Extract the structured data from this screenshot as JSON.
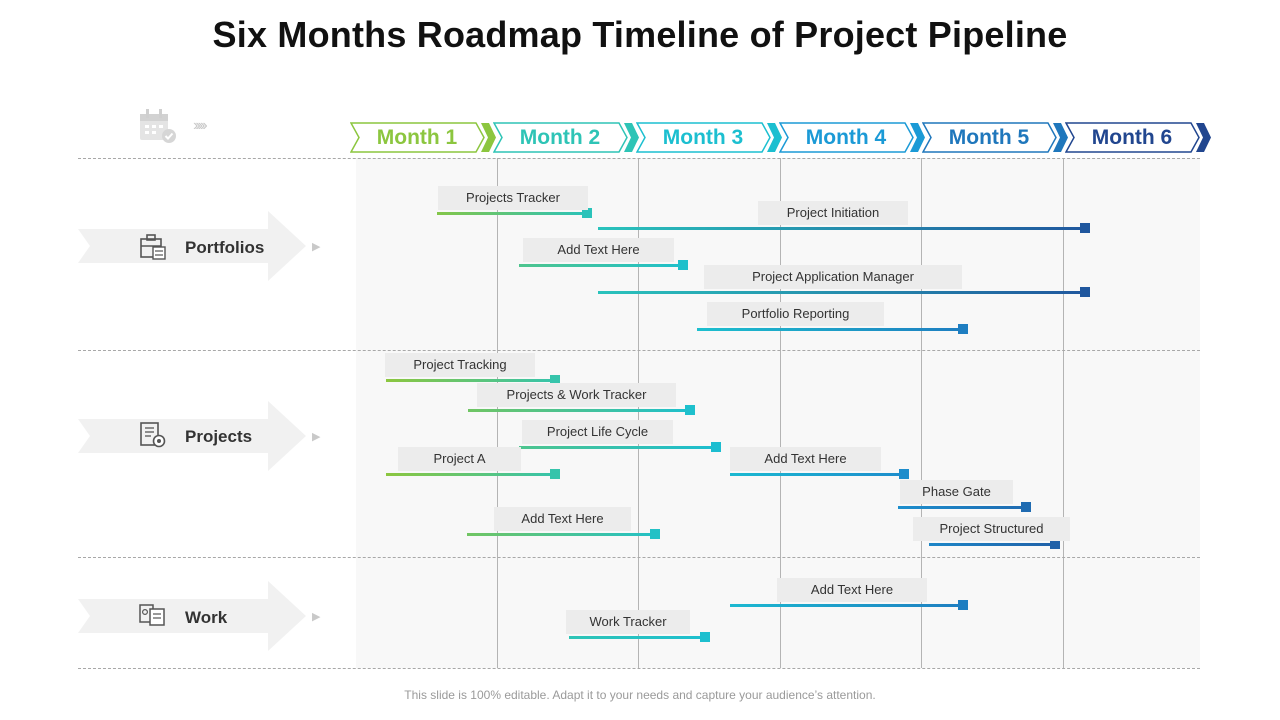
{
  "title": "Six Months Roadmap Timeline of Project Pipeline",
  "footer": "This slide is 100% editable. Adapt it to your needs and capture your audience’s attention.",
  "header": {
    "icon": "calendar-check-icon",
    "chevrons": "›››››"
  },
  "months": [
    {
      "label": "Month 1",
      "color": "#8cc63f"
    },
    {
      "label": "Month 2",
      "color": "#2ec4b6"
    },
    {
      "label": "Month 3",
      "color": "#1cbfd0"
    },
    {
      "label": "Month 4",
      "color": "#1b9ad6"
    },
    {
      "label": "Month 5",
      "color": "#1f77bc"
    },
    {
      "label": "Month 6",
      "color": "#21468f"
    }
  ],
  "rows": [
    {
      "label": "Portfolios",
      "icon": "portfolio-icon"
    },
    {
      "label": "Projects",
      "icon": "project-settings-icon"
    },
    {
      "label": "Work",
      "icon": "work-documents-icon"
    }
  ],
  "tasks": [
    {
      "label": "Projects Tracker",
      "row": "Portfolios",
      "start": 0.58,
      "end": 1.64
    },
    {
      "label": "Project Initiation",
      "row": "Portfolios",
      "start": 1.72,
      "end": 5.16
    },
    {
      "label": "Add Text Here",
      "row": "Portfolios",
      "start": 1.16,
      "end": 2.32
    },
    {
      "label": "Project Application Manager",
      "row": "Portfolios",
      "start": 1.72,
      "end": 5.16
    },
    {
      "label": "Portfolio Reporting",
      "row": "Portfolios",
      "start": 2.42,
      "end": 4.3
    },
    {
      "label": "Project Tracking",
      "row": "Projects",
      "start": 0.22,
      "end": 1.41
    },
    {
      "label": "Projects & Work  Tracker",
      "row": "Projects",
      "start": 0.8,
      "end": 2.37
    },
    {
      "label": "Project Life Cycle",
      "row": "Projects",
      "start": 1.16,
      "end": 2.55
    },
    {
      "label": "Project A",
      "row": "Projects",
      "start": 0.22,
      "end": 1.41
    },
    {
      "label": "Add Text Here",
      "row": "Projects",
      "start": 2.65,
      "end": 3.88
    },
    {
      "label": "Phase Gate",
      "row": "Projects",
      "start": 3.84,
      "end": 4.74
    },
    {
      "label": "Project Structured",
      "row": "Projects",
      "start": 4.06,
      "end": 4.95
    },
    {
      "label": "Add Text Here",
      "row": "Projects",
      "start": 0.79,
      "end": 2.12
    },
    {
      "label": "Add Text Here",
      "row": "Work",
      "start": 2.65,
      "end": 4.3
    },
    {
      "label": "Work Tracker",
      "row": "Work",
      "start": 1.51,
      "end": 2.47
    }
  ]
}
